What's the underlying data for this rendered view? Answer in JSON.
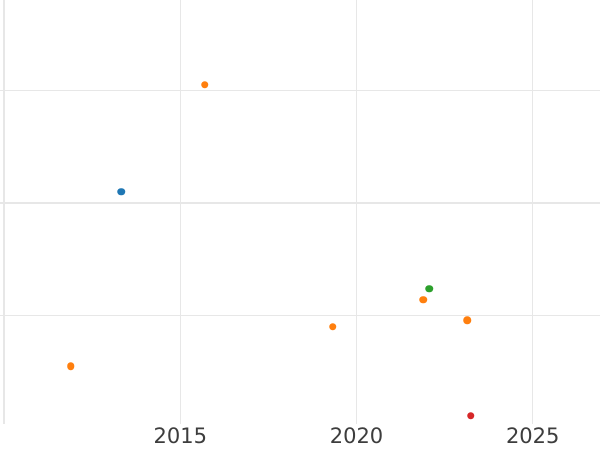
{
  "chart": {
    "title": "",
    "background_color": "#ffffff",
    "grid_color": "#e7e7e7",
    "tick_label_color": "#3d3d3d",
    "x_axis": {
      "tick_labels": [
        "2015",
        "2020",
        "2025"
      ],
      "tick_values": [
        2015,
        2020,
        2025
      ]
    },
    "y_axis": {
      "tick_labels": [],
      "note": "no y-axis labels visible; gridline units are unlabeled"
    }
  },
  "chart_data": {
    "type": "scatter",
    "title": "",
    "xlabel": "",
    "ylabel": "",
    "x_range": [
      2009.886,
      2026.91
    ],
    "y_range": [
      0.036,
      3.804
    ],
    "x_gridlines": [
      2010,
      2015,
      2020,
      2025
    ],
    "y_gridlines": [
      1,
      2,
      3
    ],
    "grid": true,
    "legend": false,
    "y_unit": "gridline-units (y tick labels not visible in image)",
    "series": [
      {
        "name": "orange",
        "color": "#ff7f0e",
        "points": [
          {
            "x": 2015.7,
            "y": 3.05
          },
          {
            "x": 2011.89,
            "y": 0.55
          },
          {
            "x": 2019.33,
            "y": 0.9
          },
          {
            "x": 2021.9,
            "y": 1.14
          },
          {
            "x": 2023.15,
            "y": 0.96
          }
        ]
      },
      {
        "name": "blue",
        "color": "#1f77b4",
        "points": [
          {
            "x": 2013.33,
            "y": 2.1
          }
        ]
      },
      {
        "name": "green",
        "color": "#2ca02c",
        "points": [
          {
            "x": 2022.07,
            "y": 1.24
          }
        ]
      },
      {
        "name": "red",
        "color": "#d62728",
        "points": [
          {
            "x": 2023.24,
            "y": 0.11
          }
        ]
      }
    ]
  }
}
